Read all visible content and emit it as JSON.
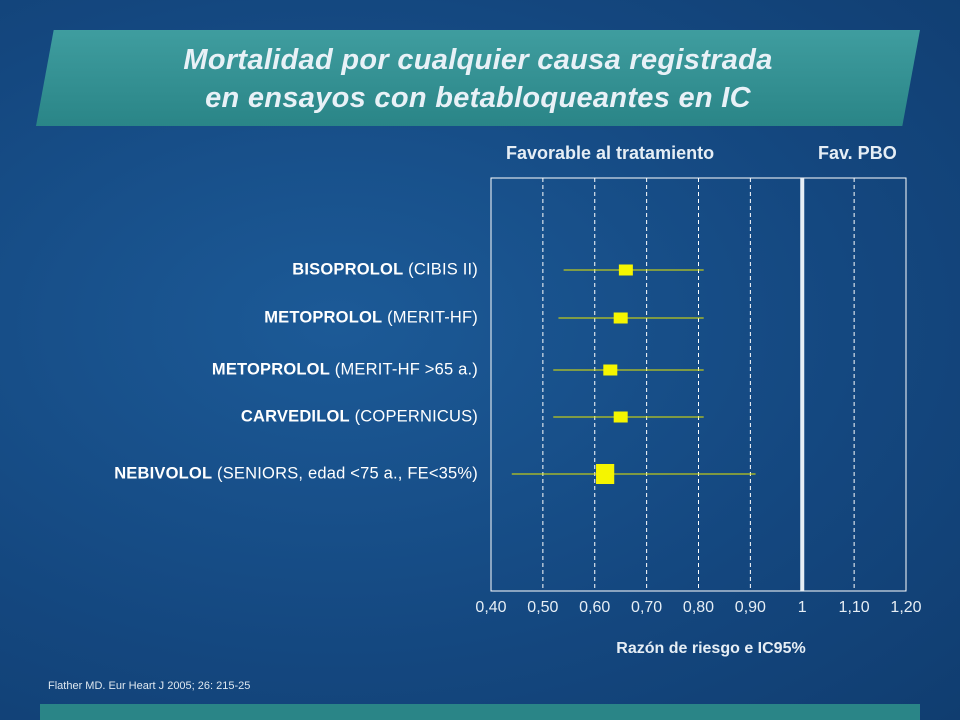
{
  "title": {
    "line1": "Mortalidad por cualquier causa registrada",
    "line2": "en ensayos con betabloqueantes en IC"
  },
  "chart_data": {
    "type": "forest",
    "header_left": "Favorable al tratamiento",
    "header_right": "Fav. PBO",
    "xlabel": "Razón de riesgo e IC95%",
    "xlim": [
      0.4,
      1.2
    ],
    "xticks": [
      0.4,
      0.5,
      0.6,
      0.7,
      0.8,
      0.9,
      1.0,
      1.1,
      1.2
    ],
    "xtick_labels": [
      "0,40",
      "0,50",
      "0,60",
      "0,70",
      "0,80",
      "0,90",
      "1",
      "1,10",
      "1,20"
    ],
    "reference_line": 1.0,
    "grid": "dashed vertical",
    "rows": [
      {
        "drug": "BISOPROLOL",
        "trial": "(CIBIS II)",
        "hr": 0.66,
        "ci_low": 0.54,
        "ci_high": 0.81,
        "weight": 1.0
      },
      {
        "drug": "METOPROLOL",
        "trial": "(MERIT-HF)",
        "hr": 0.65,
        "ci_low": 0.53,
        "ci_high": 0.81,
        "weight": 1.0
      },
      {
        "drug": "METOPROLOL",
        "trial": "(MERIT-HF >65 a.)",
        "hr": 0.63,
        "ci_low": 0.52,
        "ci_high": 0.81,
        "weight": 1.0
      },
      {
        "drug": "CARVEDILOL",
        "trial": "(COPERNICUS)",
        "hr": 0.65,
        "ci_low": 0.52,
        "ci_high": 0.81,
        "weight": 1.0
      },
      {
        "drug": "NEBIVOLOL",
        "trial": "(SENIORS, edad <75 a., FE<35%)",
        "hr": 0.62,
        "ci_low": 0.44,
        "ci_high": 0.91,
        "weight": 1.3
      }
    ]
  },
  "source": "Flather MD. Eur Heart J 2005; 26: 215-25",
  "colors": {
    "marker": "#f5f500",
    "ci_line": "#e6e600",
    "reference": "#e6eef5",
    "grid": "#ffffff"
  }
}
